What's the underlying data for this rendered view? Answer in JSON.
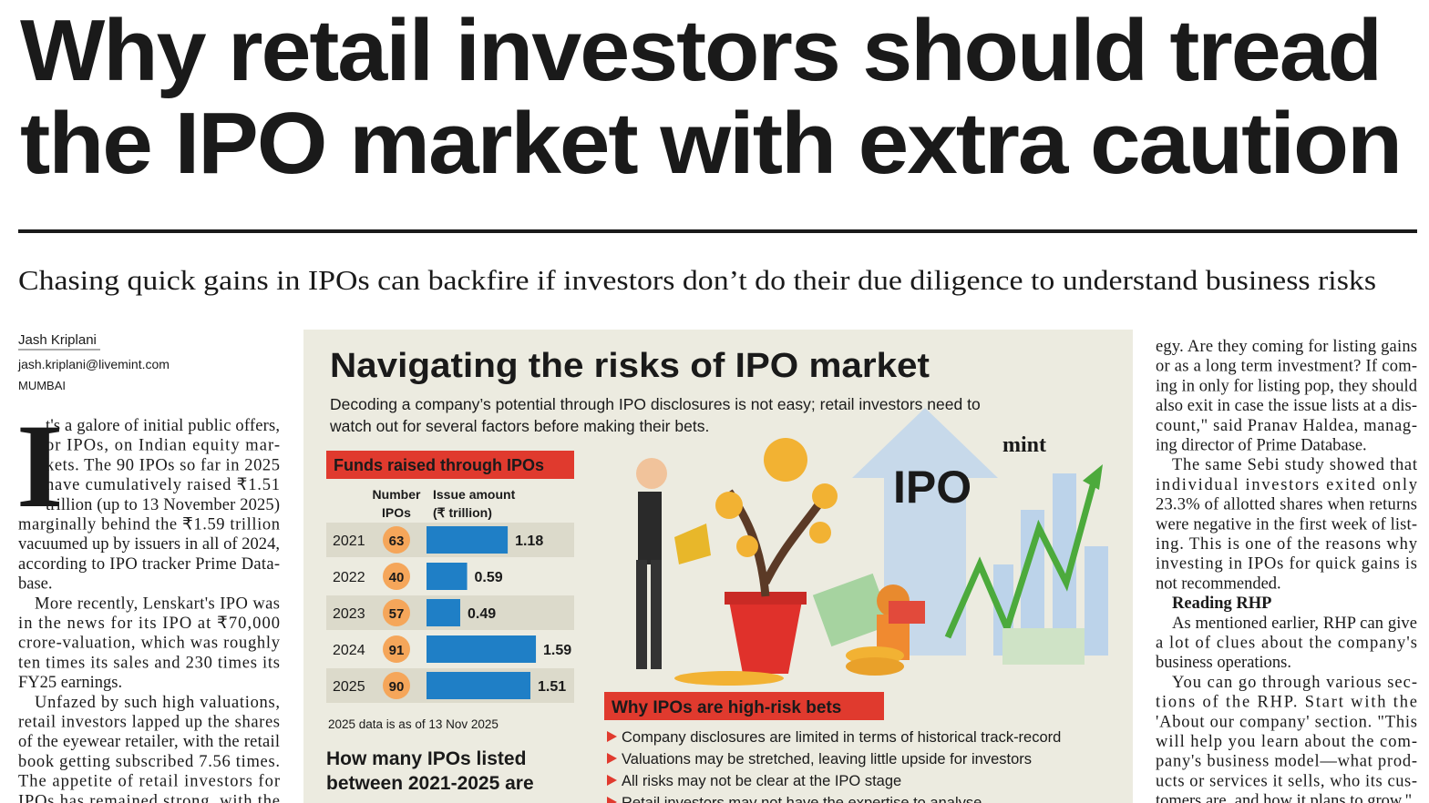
{
  "headline": [
    "Why retail investors should tread",
    "the IPO market with extra caution"
  ],
  "subheadline": "Chasing quick gains in IPOs can backfire if investors don’t do their due diligence to understand business risks",
  "byline": {
    "author": "Jash Kriplani",
    "email": "jash.kriplani@livemint.com",
    "location": "MUMBAI"
  },
  "left_column": {
    "drop_cap": "I",
    "paragraphs": [
      [
        "t's a galore of initial public offers,",
        "or IPOs, on Indian equity mar-",
        "kets. The 90 IPOs so far in 2025",
        "have cumulatively raised ₹1.51",
        "trillion (up to 13 November 2025)",
        "marginally behind the ₹1.59 trillion",
        "vacuumed up by issuers in all of 2024,",
        "according to IPO tracker Prime Data-",
        "base."
      ],
      [
        "More recently, Lenskart's IPO was",
        "in the news for its IPO at ₹70,000",
        "crore-valuation, which was roughly",
        "ten times its sales and 230 times its",
        "FY25 earnings."
      ],
      [
        "Unfazed by such high valuations,",
        "retail investors lapped up the shares",
        "of the eyewear retailer, with the retail",
        "book getting subscribed 7.56 times.",
        "The appetite of retail investors for",
        "IPOs has remained strong, with the"
      ]
    ]
  },
  "infographic": {
    "title": "Navigating the risks of IPO market",
    "description": [
      "Decoding a company’s potential through IPO disclosures is not easy; retail investors need to",
      "watch out for several factors before making their bets."
    ],
    "logo": "mint",
    "illustration_label": "IPO",
    "funds_table": {
      "title": "Funds raised through IPOs",
      "headers": [
        [
          "Number",
          "IPOs"
        ],
        [
          "Issue amount",
          "(₹ trillion)"
        ]
      ],
      "years": [
        2021,
        2022,
        2023,
        2024,
        2025
      ],
      "numbers": [
        63,
        40,
        57,
        91,
        90
      ],
      "amounts": [
        1.18,
        0.59,
        0.49,
        1.59,
        1.51
      ],
      "note": "2025 data is as of 13 Nov 2025"
    },
    "listing_question": [
      "How many IPOs listed",
      "between 2021-2025 are"
    ],
    "risks": {
      "title": "Why IPOs are high-risk bets",
      "items": [
        "Company disclosures are limited in terms of historical track-record",
        "Valuations may be stretched, leaving little upside for investors",
        "All risks may not be clear at the IPO stage",
        "Retail investors may not have the expertise to analyse"
      ]
    }
  },
  "right_column": {
    "blocks": [
      {
        "lines": [
          "egy. Are they coming for listing gains",
          "or as a long term investment? If com-",
          "ing in only for listing pop, they should",
          "also exit in case the issue lists at a dis-",
          "count,\" said Pranav Haldea, manag-",
          "ing director of Prime Database."
        ]
      },
      {
        "lines": [
          "The same Sebi study showed that",
          "individual investors exited only",
          "23.3% of allotted shares when returns",
          "were negative in the first week of list-",
          "ing. This is one of the reasons why",
          "investing in IPOs for quick gains is",
          "not recommended."
        ]
      },
      {
        "heading": "Reading RHP"
      },
      {
        "lines": [
          "As mentioned earlier, RHP can give",
          "a lot of clues about the company's",
          "business operations."
        ]
      },
      {
        "lines": [
          "You can go through various sec-",
          "tions of the RHP. Start with the",
          "'About our company' section. \"This",
          "will help you learn about the com-",
          "pany's business model—what prod-",
          "ucts or services it sells, who its cus-",
          "tomers are, and how it plans to grow.\""
        ]
      }
    ]
  }
}
